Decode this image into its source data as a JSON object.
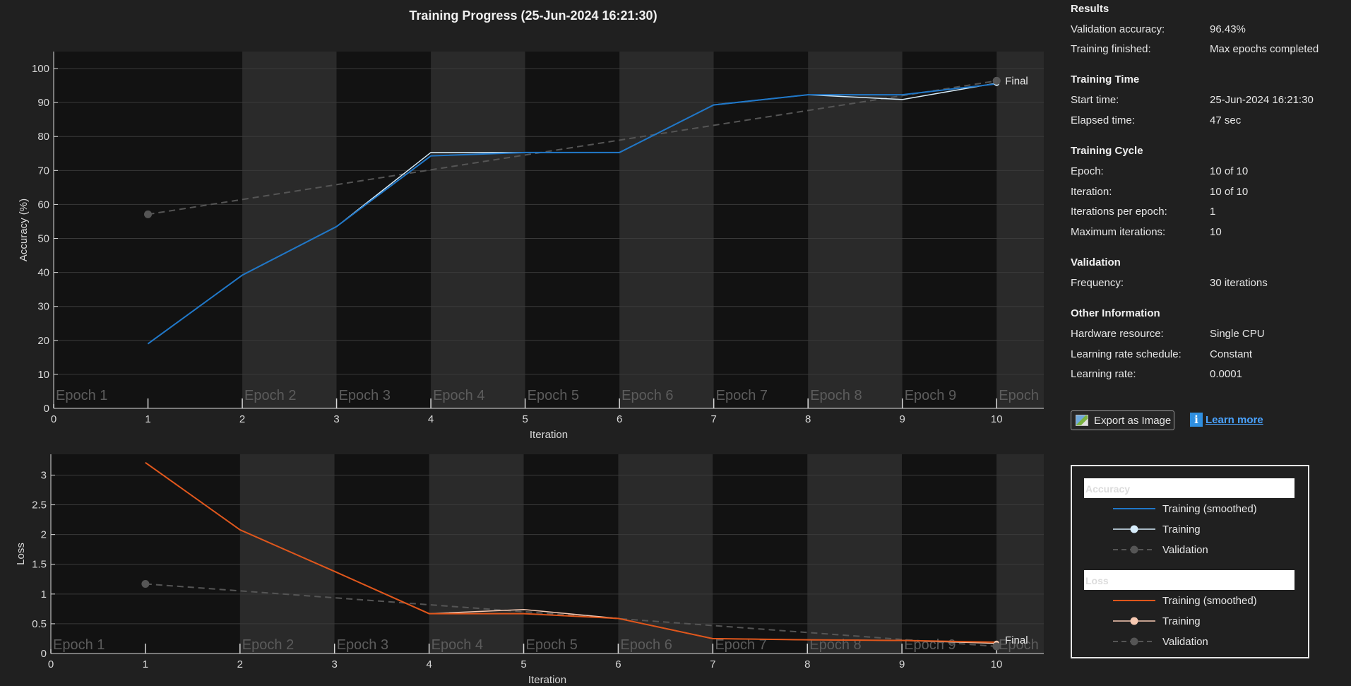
{
  "title": "Training Progress (25-Jun-2024 16:21:30)",
  "colors": {
    "acc_smoothed": "#1f77c8",
    "acc_training": "#d6ecfa",
    "loss_smoothed": "#e0561b",
    "loss_training": "#f7c9b2",
    "validation": "#555555",
    "band_light": "#2a2a2a",
    "band_dark": "#121212"
  },
  "chart_data": [
    {
      "type": "line",
      "xlabel": "Iteration",
      "ylabel": "Accuracy (%)",
      "xlim": [
        0,
        10.5
      ],
      "ylim": [
        0,
        105
      ],
      "xticks": [
        0,
        1,
        2,
        3,
        4,
        5,
        6,
        7,
        8,
        9,
        10
      ],
      "yticks": [
        0,
        10,
        20,
        30,
        40,
        50,
        60,
        70,
        80,
        90,
        100
      ],
      "grid": true,
      "epochs": [
        "Epoch 1",
        "Epoch 2",
        "Epoch 3",
        "Epoch 4",
        "Epoch 5",
        "Epoch 6",
        "Epoch 7",
        "Epoch 8",
        "Epoch 9",
        "Epoch"
      ],
      "final_label": "Final",
      "series": [
        {
          "name": "Training (smoothed)",
          "x": [
            1,
            2,
            3,
            4,
            5,
            6,
            7,
            8,
            9,
            10
          ],
          "values": [
            19,
            39.2,
            53.5,
            74.3,
            75.3,
            75.3,
            89.3,
            92.3,
            92.3,
            95.5
          ]
        },
        {
          "name": "Training",
          "x": [
            1,
            2,
            3,
            4,
            5,
            6,
            7,
            8,
            9,
            10
          ],
          "values": [
            19,
            39.2,
            53.5,
            75.3,
            75.3,
            75.3,
            89.3,
            92.3,
            90.9,
            95.7
          ]
        },
        {
          "name": "Validation",
          "x": [
            1,
            10
          ],
          "values": [
            57.1,
            96.4
          ]
        }
      ]
    },
    {
      "type": "line",
      "xlabel": "Iteration",
      "ylabel": "Loss",
      "xlim": [
        0,
        10.5
      ],
      "ylim": [
        0,
        3.35
      ],
      "xticks": [
        0,
        1,
        2,
        3,
        4,
        5,
        6,
        7,
        8,
        9,
        10
      ],
      "yticks": [
        "0",
        "0.5",
        "1",
        "1.5",
        "2",
        "2.5",
        "3"
      ],
      "grid": true,
      "epochs": [
        "Epoch 1",
        "Epoch 2",
        "Epoch 3",
        "Epoch 4",
        "Epoch 5",
        "Epoch 6",
        "Epoch 7",
        "Epoch 8",
        "Epoch 9",
        "Epoch"
      ],
      "final_label": "Final",
      "series": [
        {
          "name": "Training (smoothed)",
          "x": [
            1,
            2,
            3,
            4,
            5,
            6,
            7,
            8,
            9,
            10
          ],
          "values": [
            3.21,
            2.08,
            1.38,
            0.67,
            0.67,
            0.59,
            0.25,
            0.23,
            0.22,
            0.19
          ]
        },
        {
          "name": "Training",
          "x": [
            1,
            2,
            3,
            4,
            5,
            6,
            7,
            8,
            9,
            10
          ],
          "values": [
            3.21,
            2.08,
            1.38,
            0.67,
            0.74,
            0.59,
            0.25,
            0.23,
            0.22,
            0.17
          ]
        },
        {
          "name": "Validation",
          "x": [
            1,
            10
          ],
          "values": [
            1.17,
            0.12
          ]
        }
      ]
    }
  ],
  "info": {
    "results": {
      "title": "Results",
      "rows": [
        {
          "label": "Validation accuracy:",
          "value": "96.43%"
        },
        {
          "label": "Training finished:",
          "value": "Max epochs completed"
        }
      ]
    },
    "training_time": {
      "title": "Training Time",
      "rows": [
        {
          "label": "Start time:",
          "value": "25-Jun-2024 16:21:30"
        },
        {
          "label": "Elapsed time:",
          "value": "47 sec"
        }
      ]
    },
    "training_cycle": {
      "title": "Training Cycle",
      "rows": [
        {
          "label": "Epoch:",
          "value": "10 of 10"
        },
        {
          "label": "Iteration:",
          "value": "10 of 10"
        },
        {
          "label": "Iterations per epoch:",
          "value": "1"
        },
        {
          "label": "Maximum iterations:",
          "value": "10"
        }
      ]
    },
    "validation": {
      "title": "Validation",
      "rows": [
        {
          "label": "Frequency:",
          "value": "30 iterations"
        }
      ]
    },
    "other": {
      "title": "Other Information",
      "rows": [
        {
          "label": "Hardware resource:",
          "value": "Single CPU"
        },
        {
          "label": "Learning rate schedule:",
          "value": "Constant"
        },
        {
          "label": "Learning rate:",
          "value": "0.0001"
        }
      ]
    }
  },
  "buttons": {
    "export_label": "Export as Image",
    "learn_more_label": "Learn more",
    "info_icon": "info-icon",
    "export_icon": "image-export-icon"
  },
  "legend": {
    "accuracy_header": "Accuracy",
    "loss_header": "Loss",
    "accuracy_items": [
      "Training (smoothed)",
      "Training",
      "Validation"
    ],
    "loss_items": [
      "Training (smoothed)",
      "Training",
      "Validation"
    ]
  }
}
